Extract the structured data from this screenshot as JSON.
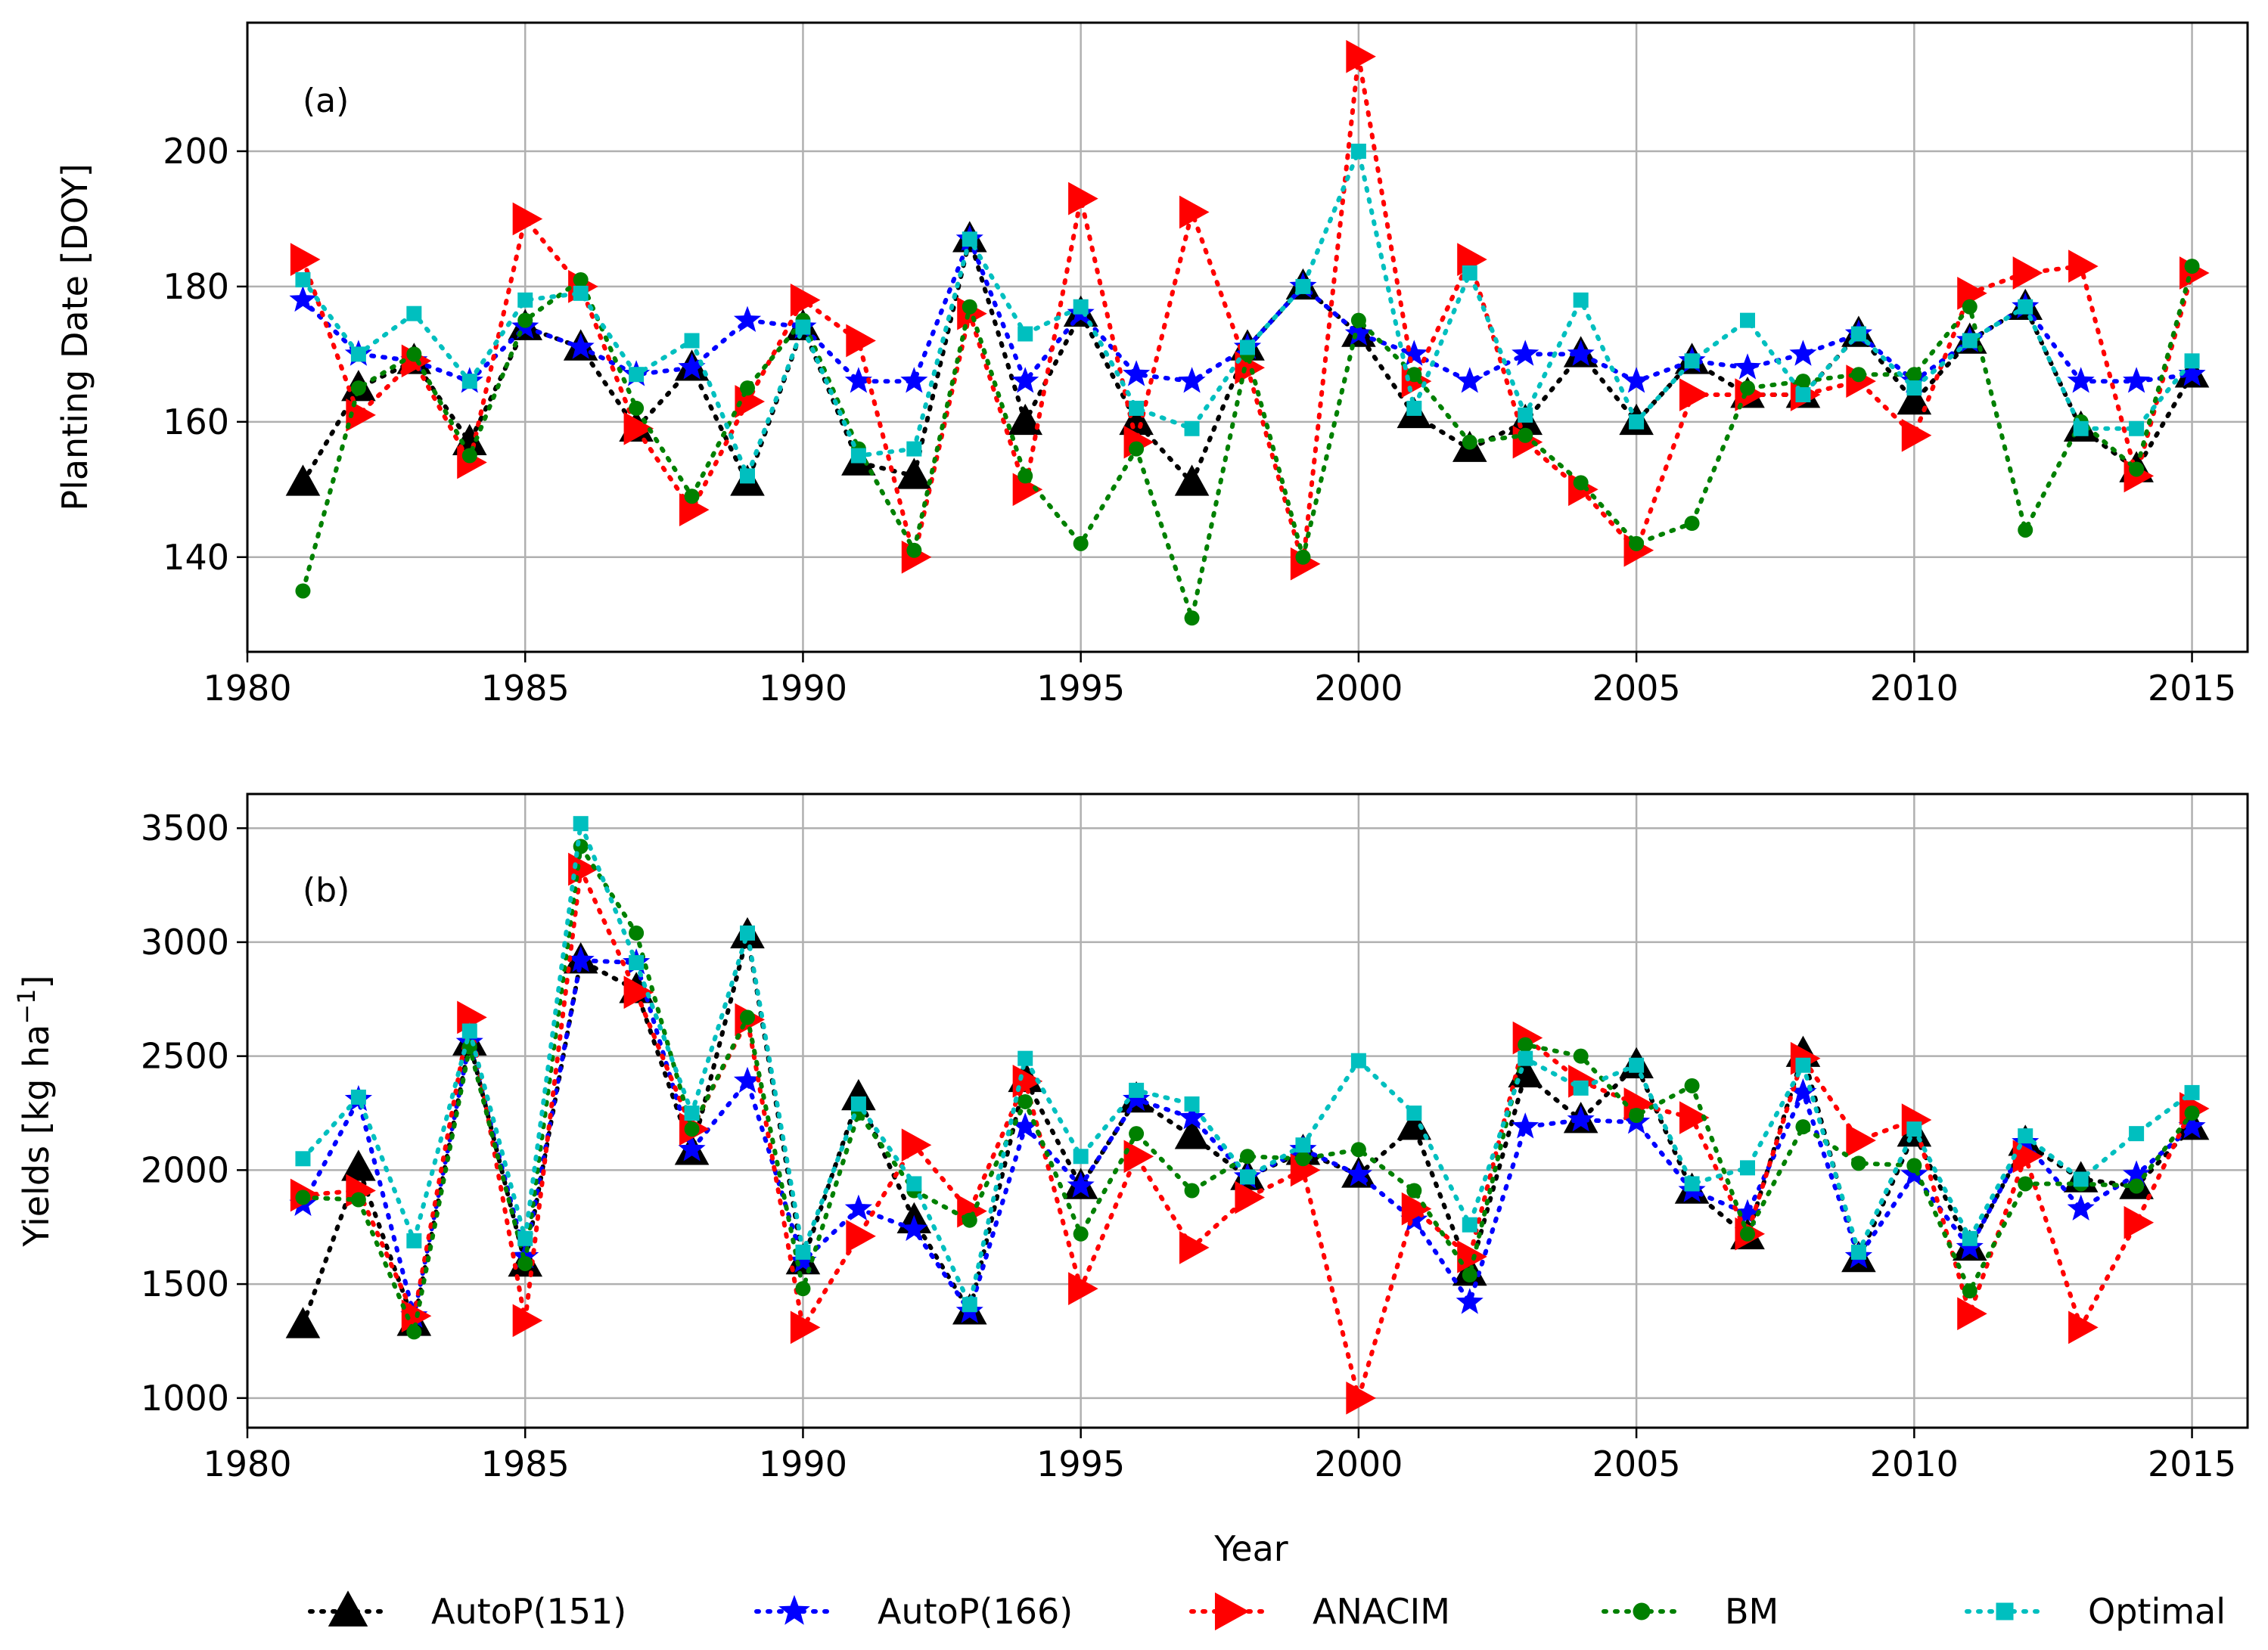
{
  "legend": {
    "items": [
      {
        "label": "AutoP(151)",
        "color": "#000000",
        "marker": "triangle-up"
      },
      {
        "label": "AutoP(166)",
        "color": "#0000ff",
        "marker": "star"
      },
      {
        "label": "ANACIM",
        "color": "#ff0000",
        "marker": "triangle-right"
      },
      {
        "label": "BM",
        "color": "#008000",
        "marker": "circle"
      },
      {
        "label": "Optimal",
        "color": "#00bfbf",
        "marker": "square"
      }
    ]
  },
  "chart_data": [
    {
      "type": "line",
      "panel_label": "(a)",
      "title": "",
      "xlabel": "",
      "ylabel": "Planting Date [DOY]",
      "xlim": [
        1980,
        2016
      ],
      "ylim": [
        126,
        219
      ],
      "xticks": [
        1980,
        1985,
        1990,
        1995,
        2000,
        2005,
        2010,
        2015
      ],
      "yticks": [
        140,
        160,
        180,
        200
      ],
      "grid": true,
      "x": [
        1981,
        1982,
        1983,
        1984,
        1985,
        1986,
        1987,
        1988,
        1989,
        1990,
        1991,
        1992,
        1993,
        1994,
        1995,
        1996,
        1997,
        1998,
        1999,
        2000,
        2001,
        2002,
        2003,
        2004,
        2005,
        2006,
        2007,
        2008,
        2009,
        2010,
        2011,
        2012,
        2013,
        2014,
        2015
      ],
      "series": [
        {
          "name": "AutoP(151)",
          "values": [
            151,
            165,
            169,
            157,
            174,
            171,
            159,
            168,
            151,
            174,
            154,
            152,
            187,
            160,
            176,
            160,
            151,
            171,
            180,
            173,
            161,
            156,
            160,
            170,
            160,
            169,
            164,
            164,
            173,
            163,
            172,
            177,
            159,
            153,
            167
          ]
        },
        {
          "name": "AutoP(166)",
          "values": [
            178,
            170,
            169,
            166,
            174,
            171,
            167,
            168,
            175,
            174,
            166,
            166,
            187,
            166,
            176,
            167,
            166,
            171,
            180,
            173,
            170,
            166,
            170,
            170,
            166,
            169,
            168,
            170,
            173,
            166,
            172,
            177,
            166,
            166,
            167
          ]
        },
        {
          "name": "ANACIM",
          "values": [
            184,
            161,
            169,
            154,
            190,
            180,
            159,
            147,
            163,
            178,
            172,
            140,
            176,
            150,
            193,
            157,
            191,
            168,
            139,
            214,
            166,
            184,
            157,
            150,
            141,
            164,
            164,
            164,
            166,
            158,
            179,
            182,
            183,
            152,
            182
          ]
        },
        {
          "name": "BM",
          "values": [
            135,
            165,
            170,
            155,
            175,
            181,
            162,
            149,
            165,
            175,
            156,
            141,
            177,
            152,
            142,
            156,
            131,
            170,
            140,
            175,
            167,
            157,
            158,
            151,
            142,
            145,
            165,
            166,
            167,
            167,
            177,
            144,
            160,
            153,
            183
          ]
        },
        {
          "name": "Optimal",
          "values": [
            181,
            170,
            176,
            166,
            178,
            179,
            167,
            172,
            152,
            174,
            155,
            156,
            187,
            173,
            177,
            162,
            159,
            171,
            180,
            200,
            162,
            182,
            161,
            178,
            160,
            169,
            175,
            164,
            173,
            165,
            172,
            177,
            159,
            159,
            169
          ]
        }
      ]
    },
    {
      "type": "line",
      "panel_label": "(b)",
      "title": "",
      "xlabel": "Year",
      "ylabel": "Yields [kg ha$^{-1}$]",
      "ylabel_main": "Yields [kg ha",
      "ylabel_sup": "−1",
      "ylabel_end": "]",
      "xlim": [
        1980,
        2016
      ],
      "ylim": [
        870,
        3650
      ],
      "xticks": [
        1980,
        1985,
        1990,
        1995,
        2000,
        2005,
        2010,
        2015
      ],
      "yticks": [
        1000,
        1500,
        2000,
        2500,
        3000,
        3500
      ],
      "grid": true,
      "x": [
        1981,
        1982,
        1983,
        1984,
        1985,
        1986,
        1987,
        1988,
        1989,
        1990,
        1991,
        1992,
        1993,
        1994,
        1995,
        1996,
        1997,
        1998,
        1999,
        2000,
        2001,
        2002,
        2003,
        2004,
        2005,
        2006,
        2007,
        2008,
        2009,
        2010,
        2011,
        2012,
        2013,
        2014,
        2015
      ],
      "series": [
        {
          "name": "AutoP(151)",
          "values": [
            1320,
            2010,
            1330,
            2560,
            1590,
            2920,
            2790,
            2080,
            3030,
            1600,
            2320,
            1780,
            1380,
            2400,
            1930,
            2310,
            2150,
            1970,
            2080,
            1980,
            2190,
            1550,
            2420,
            2220,
            2460,
            1910,
            1710,
            2510,
            1610,
            2160,
            1660,
            2120,
            1960,
            1930,
            2190
          ]
        },
        {
          "name": "AutoP(166)",
          "values": [
            1850,
            2310,
            1360,
            2560,
            1620,
            2920,
            2910,
            2090,
            2390,
            1600,
            1830,
            1740,
            1380,
            2190,
            1930,
            2310,
            2230,
            1970,
            2090,
            1980,
            1780,
            1420,
            2190,
            2220,
            2210,
            1910,
            1810,
            2340,
            1620,
            1980,
            1660,
            2120,
            1830,
            1980,
            2190
          ]
        },
        {
          "name": "ANACIM",
          "values": [
            1890,
            1910,
            1360,
            2670,
            1340,
            3320,
            2780,
            2180,
            2660,
            1310,
            1710,
            2110,
            1820,
            2390,
            1480,
            2060,
            1660,
            1880,
            2000,
            1000,
            1830,
            1620,
            2580,
            2390,
            2290,
            2230,
            1720,
            2490,
            2130,
            2220,
            1370,
            2060,
            1310,
            1770,
            2270
          ]
        },
        {
          "name": "BM",
          "values": [
            1880,
            1870,
            1290,
            2540,
            1590,
            3420,
            3040,
            2180,
            2670,
            1480,
            2250,
            1910,
            1780,
            2300,
            1720,
            2160,
            1910,
            2060,
            2050,
            2090,
            1910,
            1540,
            2550,
            2500,
            2240,
            2370,
            1720,
            2190,
            2030,
            2020,
            1470,
            1940,
            1940,
            1930,
            2250
          ]
        },
        {
          "name": "Optimal",
          "values": [
            2050,
            2320,
            1690,
            2610,
            1700,
            3520,
            2910,
            2250,
            3040,
            1640,
            2290,
            1940,
            1410,
            2490,
            2060,
            2350,
            2290,
            1970,
            2110,
            2480,
            2250,
            1760,
            2490,
            2360,
            2460,
            1940,
            2010,
            2460,
            1640,
            2180,
            1700,
            2150,
            1960,
            2160,
            2340
          ]
        }
      ]
    }
  ]
}
